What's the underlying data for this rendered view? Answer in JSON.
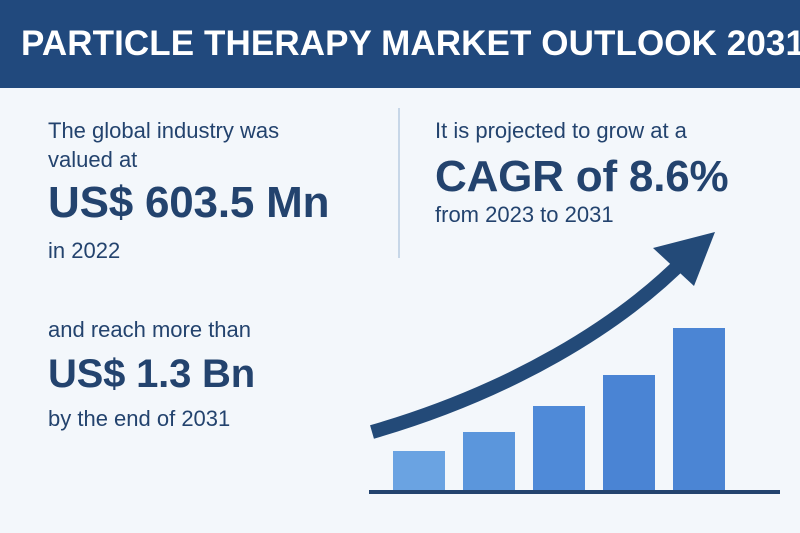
{
  "header": {
    "title": "PARTICLE THERAPY MARKET OUTLOOK 2031"
  },
  "left": {
    "line1": "The global industry was",
    "line2": "valued at",
    "value_2022": "US$ 603.5 Mn",
    "year_2022": "in 2022",
    "reach_line": "and reach more than",
    "value_2031": "US$ 1.3 Bn",
    "end_line": "by the end of 2031"
  },
  "right": {
    "line1": "It is projected to grow at a",
    "cagr": "CAGR of 8.6%",
    "period": "from 2023 to 2031"
  },
  "colors": {
    "header": "#21497d",
    "text": "#23436e",
    "arrow": "#234a78",
    "bars": [
      "#6aa3e2",
      "#5b96dc",
      "#4f8ad8",
      "#4a84d4",
      "#4b85d4"
    ],
    "baseline": "#23436e",
    "background": "#f3f7fb"
  },
  "growth_graphic": {
    "icon": "rising-arrow-bars-icon",
    "levels": [
      0.24,
      0.36,
      0.52,
      0.71,
      1.0
    ]
  }
}
